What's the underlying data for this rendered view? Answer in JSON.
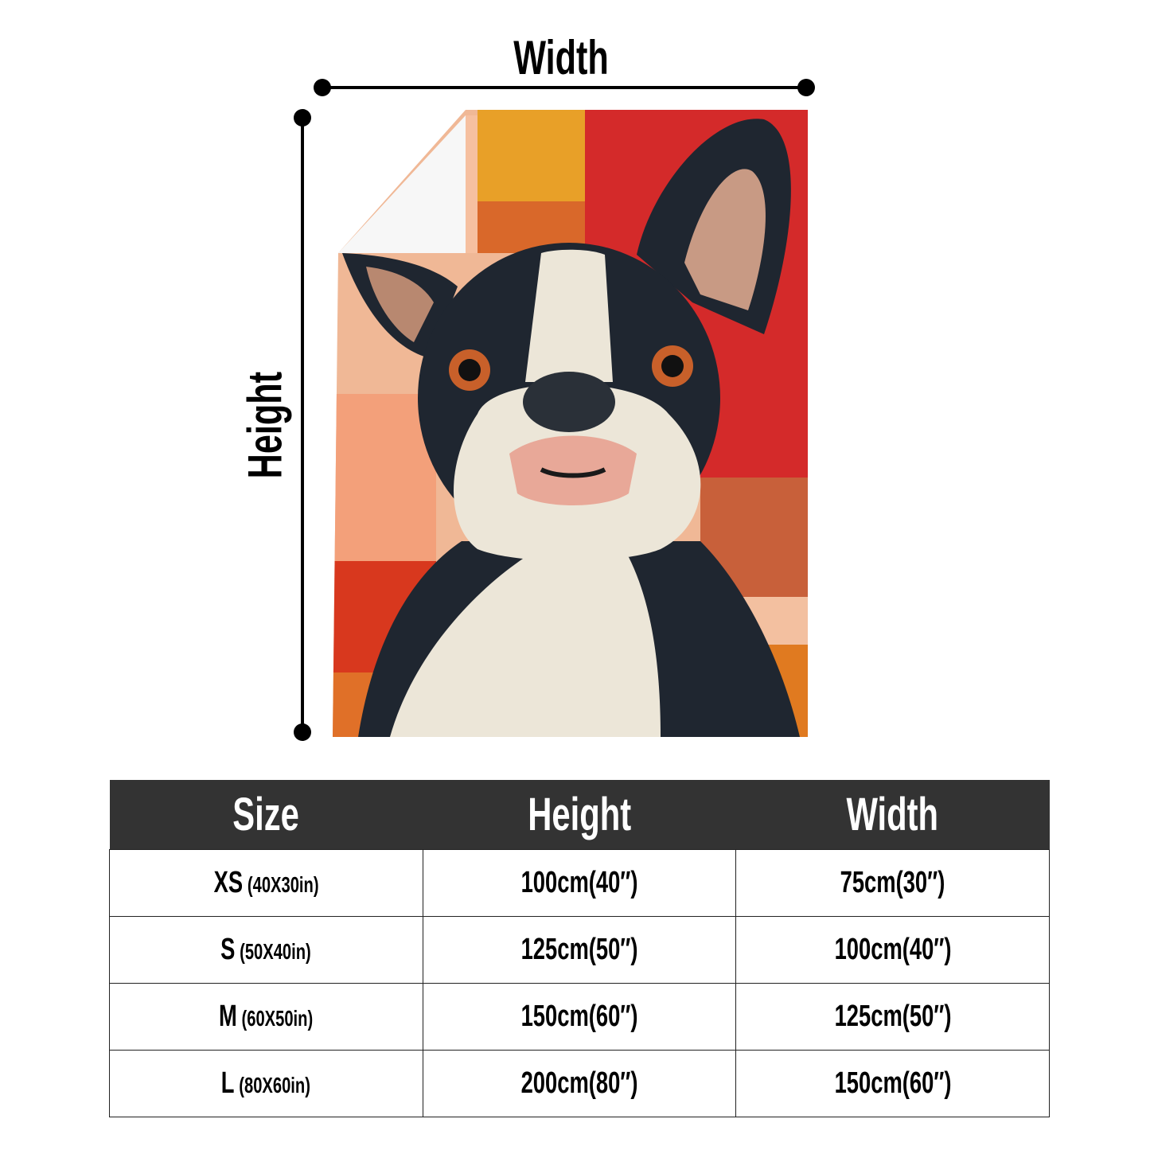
{
  "diagram": {
    "width_label": "Width",
    "height_label": "Height",
    "colors": {
      "ink": "#000000",
      "header_bg": "#333333",
      "blanket_red": "#d42a2a",
      "blanket_orange": "#e8952a",
      "blanket_peach": "#f0b896"
    }
  },
  "table": {
    "headers": [
      "Size",
      "Height",
      "Width"
    ],
    "rows": [
      {
        "size": "XS",
        "inches": "(40X30in)",
        "height": "100cm(40″)",
        "width": "75cm(30″)"
      },
      {
        "size": "S",
        "inches": "(50X40in)",
        "height": "125cm(50″)",
        "width": "100cm(40″)"
      },
      {
        "size": "M",
        "inches": "(60X50in)",
        "height": "150cm(60″)",
        "width": "125cm(50″)"
      },
      {
        "size": "L",
        "inches": "(80X60in)",
        "height": "200cm(80″)",
        "width": "150cm(60″)"
      }
    ]
  }
}
